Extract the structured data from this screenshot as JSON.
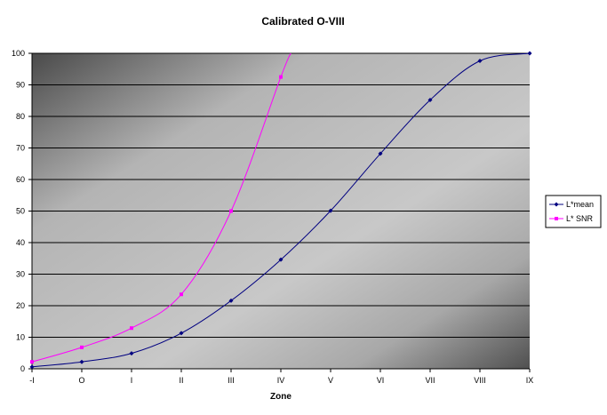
{
  "chart_data": {
    "type": "line",
    "title": "Calibrated O-VIII",
    "xlabel": "Zone",
    "ylabel": "",
    "categories": [
      "-I",
      "O",
      "I",
      "II",
      "III",
      "IV",
      "V",
      "VI",
      "VII",
      "VIII",
      "IX"
    ],
    "ylim": [
      0,
      100
    ],
    "yticks": [
      0,
      10,
      20,
      30,
      40,
      50,
      60,
      70,
      80,
      90,
      100
    ],
    "grid": "horizontal",
    "legend": "right",
    "series": [
      {
        "name": "L*mean",
        "color": "#000080",
        "marker": "diamond",
        "values": [
          0.6,
          2.2,
          4.9,
          11.3,
          21.6,
          34.6,
          50.1,
          68.2,
          85.2,
          97.6,
          100.0
        ]
      },
      {
        "name": "L* SNR",
        "color": "#ff00ff",
        "marker": "square",
        "values": [
          2.2,
          6.8,
          12.9,
          23.6,
          50.0,
          92.5,
          null,
          null,
          null,
          null,
          null
        ],
        "curve_end_x": 5.2,
        "curve_end_y": 100
      }
    ]
  }
}
